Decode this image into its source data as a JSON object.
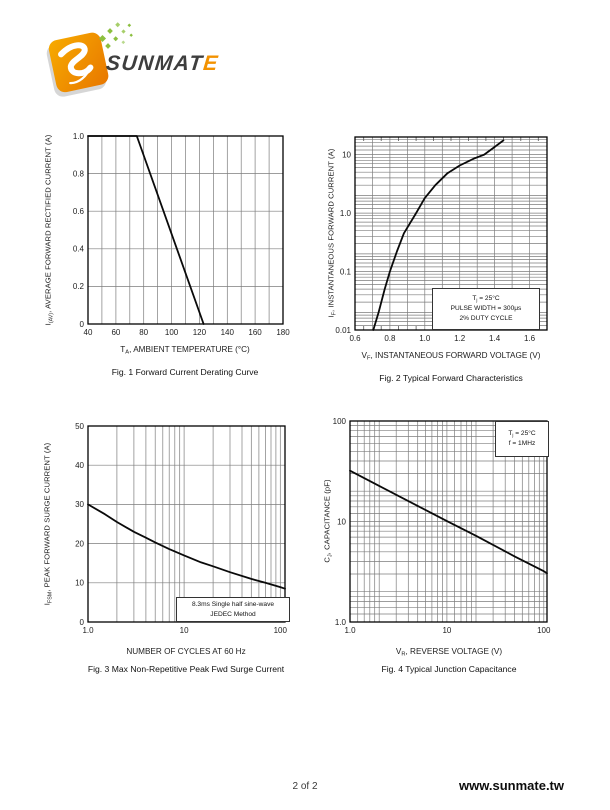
{
  "logo": {
    "part1": "SUNM",
    "part2": "A",
    "part3": "T",
    "part4": "E",
    "accent_color": "#f39200",
    "dark_color": "#3e3e3e",
    "square_color_top": "#f7ab00",
    "square_color_bottom": "#e87700",
    "dot_color": "#8cbf3f"
  },
  "footer": {
    "page": "2 of 2",
    "url": "www.sunmate.tw"
  },
  "chart_data": [
    {
      "type": "line",
      "caption": "Fig. 1 Forward Current Derating Curve",
      "xlabel": "T_A_, AMBIENT TEMPERATURE (°C)",
      "ylabel": "I_(AV)_, AVERAGE FORWARD RECTIFIED CURRENT (A)",
      "x": {
        "scale": "linear",
        "min": 40,
        "max": 180,
        "grid_step": 10,
        "ticks": [
          [
            40,
            "40"
          ],
          [
            60,
            "60"
          ],
          [
            80,
            "80"
          ],
          [
            100,
            "100"
          ],
          [
            120,
            "120"
          ],
          [
            140,
            "140"
          ],
          [
            160,
            "160"
          ],
          [
            180,
            "180"
          ]
        ]
      },
      "y": {
        "scale": "linear",
        "min": 0,
        "max": 1.0,
        "grid_step": 0.2,
        "ticks": [
          [
            1.0,
            "1.0"
          ],
          [
            0.8,
            "0.8"
          ],
          [
            0.6,
            "0.6"
          ],
          [
            0.4,
            "0.4"
          ],
          [
            0.2,
            "0.2"
          ],
          [
            0,
            "0"
          ]
        ]
      },
      "series": [
        {
          "name": "derating-curve",
          "points": [
            [
              40,
              1.0
            ],
            [
              75,
              1.0
            ],
            [
              123,
              0
            ]
          ]
        }
      ]
    },
    {
      "type": "line",
      "caption": "Fig. 2 Typical Forward Characteristics",
      "xlabel": "V_F_, INSTANTANEOUS FORWARD VOLTAGE (V)",
      "ylabel": "I_F_, INSTANTANEOUS FORWARD CURRENT (A)",
      "x": {
        "scale": "linear",
        "min": 0.6,
        "max": 1.7,
        "grid_step": 0.1,
        "minor_step": 0.05,
        "ticks": [
          [
            0.6,
            "0.6"
          ],
          [
            0.8,
            "0.8"
          ],
          [
            1.0,
            "1.0"
          ],
          [
            1.2,
            "1.2"
          ],
          [
            1.4,
            "1.4"
          ],
          [
            1.6,
            "1.6"
          ]
        ]
      },
      "y": {
        "scale": "log",
        "min": 0.01,
        "max": 20,
        "log_minor": "ext",
        "ticks": [
          [
            10,
            "10"
          ],
          [
            1.0,
            "1.0"
          ],
          [
            0.1,
            "0.1"
          ],
          [
            0.01,
            "0.01"
          ]
        ]
      },
      "series": [
        {
          "name": "vf-if-curve",
          "points": [
            [
              0.705,
              0.01
            ],
            [
              0.735,
              0.02
            ],
            [
              0.77,
              0.05
            ],
            [
              0.8,
              0.1
            ],
            [
              0.84,
              0.22
            ],
            [
              0.88,
              0.45
            ],
            [
              0.95,
              1.0
            ],
            [
              1.0,
              1.8
            ],
            [
              1.06,
              3.0
            ],
            [
              1.13,
              4.8
            ],
            [
              1.2,
              6.5
            ],
            [
              1.28,
              8.5
            ],
            [
              1.34,
              10
            ],
            [
              1.4,
              13.5
            ],
            [
              1.45,
              17.5
            ]
          ]
        }
      ],
      "annotation": {
        "lines": [
          "T_j_ = 25°C",
          "PULSE WIDTH = 300μs",
          "2% DUTY CYCLE"
        ]
      }
    },
    {
      "type": "line",
      "caption": "Fig. 3  Max Non-Repetitive Peak Fwd Surge Current",
      "xlabel": "NUMBER OF CYCLES AT 60 Hz",
      "ylabel": "I_FSM_, PEAK FORWARD SURGE CURRENT (A)",
      "x": {
        "scale": "log",
        "min": 1,
        "max": 112,
        "log_minor": "std",
        "ticks": [
          [
            1,
            "1.0"
          ],
          [
            10,
            "10"
          ],
          [
            100,
            "100"
          ]
        ]
      },
      "y": {
        "scale": "linear",
        "min": 0,
        "max": 50,
        "grid_step": 10,
        "ticks": [
          [
            50,
            "50"
          ],
          [
            40,
            "40"
          ],
          [
            30,
            "30"
          ],
          [
            20,
            "20"
          ],
          [
            10,
            "10"
          ],
          [
            0,
            "0"
          ]
        ]
      },
      "series": [
        {
          "name": "surge-current-curve",
          "points": [
            [
              1,
              30
            ],
            [
              1.5,
              27.5
            ],
            [
              2,
              25.5
            ],
            [
              3,
              23
            ],
            [
              4,
              21.5
            ],
            [
              5,
              20.3
            ],
            [
              7,
              18.6
            ],
            [
              10,
              17
            ],
            [
              15,
              15.2
            ],
            [
              20,
              14.2
            ],
            [
              30,
              12.7
            ],
            [
              50,
              11
            ],
            [
              70,
              10
            ],
            [
              100,
              8.9
            ],
            [
              112,
              8.5
            ]
          ]
        }
      ],
      "annotation": {
        "lines": [
          "8.3ms Single half sine-wave",
          "JEDEC Method"
        ]
      }
    },
    {
      "type": "line",
      "caption": "Fig. 4 Typical Junction Capacitance",
      "xlabel": "V_R_, REVERSE VOLTAGE (V)",
      "ylabel": "C_J_, CAPACITANCE (pF)",
      "x": {
        "scale": "log",
        "min": 1,
        "max": 108,
        "log_minor": "ext",
        "ticks": [
          [
            1,
            "1.0"
          ],
          [
            10,
            "10"
          ],
          [
            100,
            "100"
          ]
        ]
      },
      "y": {
        "scale": "log",
        "min": 1,
        "max": 100,
        "log_minor": "ext",
        "ticks": [
          [
            100,
            "100"
          ],
          [
            10,
            "10"
          ],
          [
            1,
            "1.0"
          ]
        ]
      },
      "series": [
        {
          "name": "junction-capacitance-curve",
          "points": [
            [
              1,
              32
            ],
            [
              2,
              22.6
            ],
            [
              5,
              14.3
            ],
            [
              10,
              10.1
            ],
            [
              20,
              7.2
            ],
            [
              50,
              4.5
            ],
            [
              100,
              3.2
            ],
            [
              108,
              3.05
            ]
          ]
        }
      ],
      "annotation": {
        "lines": [
          "T_j_ = 25°C",
          "f = 1MHz"
        ]
      }
    }
  ]
}
